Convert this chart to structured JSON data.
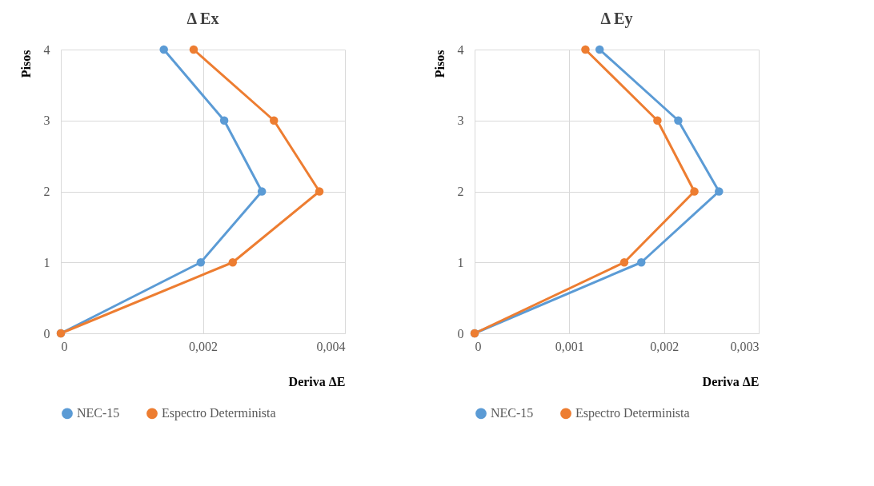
{
  "chart_data": [
    {
      "type": "line",
      "title": "Δ Ex",
      "xlabel": "Deriva ΔE",
      "ylabel": "Pisos",
      "xlim": [
        0,
        0.004
      ],
      "xticks": [
        0,
        {
          "value": 0.002,
          "label": "0,002"
        },
        {
          "value": 0.004,
          "label": "0,004"
        }
      ],
      "ylim": [
        0,
        4
      ],
      "yticks": [
        0,
        1,
        2,
        3,
        4
      ],
      "grid": true,
      "legend": "bottom",
      "marker": "circle",
      "line_style": "solid",
      "series": [
        {
          "name": "NEC-15",
          "color": "#5b9bd5",
          "x": [
            0,
            0.00197,
            0.00283,
            0.0023,
            0.00145
          ],
          "values": [
            0,
            1,
            2,
            3,
            4
          ]
        },
        {
          "name": "Espectro Determinista",
          "color": "#ed7d31",
          "x": [
            0,
            0.00242,
            0.00364,
            0.003,
            0.00187
          ],
          "values": [
            0,
            1,
            2,
            3,
            4
          ]
        }
      ]
    },
    {
      "type": "line",
      "title": "Δ Ey",
      "xlabel": "Deriva ΔE",
      "ylabel": "Pisos",
      "xlim": [
        0,
        0.003
      ],
      "xticks": [
        0,
        {
          "value": 0.001,
          "label": "0,001"
        },
        {
          "value": 0.002,
          "label": "0,002"
        },
        {
          "value": 0.003,
          "label": "0,003"
        }
      ],
      "ylim": [
        0,
        4
      ],
      "yticks": [
        0,
        1,
        2,
        3,
        4
      ],
      "grid": true,
      "legend": "bottom",
      "marker": "circle",
      "line_style": "solid",
      "series": [
        {
          "name": "NEC-15",
          "color": "#5b9bd5",
          "x": [
            0,
            0.00176,
            0.00258,
            0.00215,
            0.00132
          ],
          "values": [
            0,
            1,
            2,
            3,
            4
          ]
        },
        {
          "name": "Espectro Determinista",
          "color": "#ed7d31",
          "x": [
            0,
            0.00158,
            0.00232,
            0.00193,
            0.00117
          ],
          "values": [
            0,
            1,
            2,
            3,
            4
          ]
        }
      ]
    }
  ]
}
